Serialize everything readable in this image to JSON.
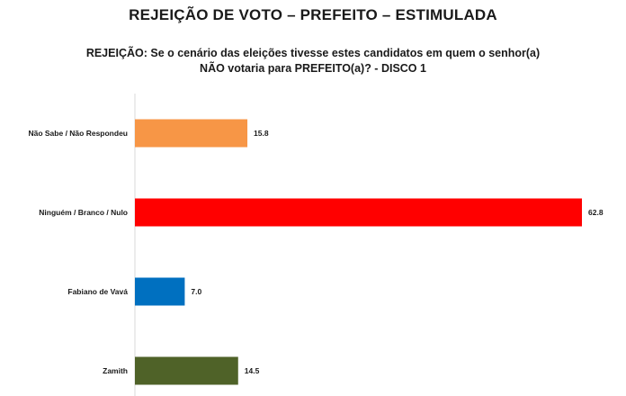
{
  "title": "REJEIÇÃO DE VOTO – PREFEITO – ESTIMULADA",
  "subtitle_line1": "REJEIÇÃO: Se o cenário das eleições tivesse estes candidatos em quem o senhor(a)",
  "subtitle_line2": "NÃO votaria para PREFEITO(a)? - DISCO 1",
  "chart_data": {
    "type": "bar",
    "orientation": "horizontal",
    "categories": [
      "Não Sabe / Não Respondeu",
      "Ninguém / Branco / Nulo",
      "Fabiano de Vavá",
      "Zamith"
    ],
    "values": [
      15.8,
      62.8,
      7.0,
      14.5
    ],
    "value_labels": [
      "15.8",
      "62.8",
      "7.0",
      "14.5"
    ],
    "colors": [
      "#F79646",
      "#FF0000",
      "#0070C0",
      "#4F6228"
    ],
    "xlim": [
      0,
      62.8
    ],
    "grid": false,
    "legend": "none"
  }
}
